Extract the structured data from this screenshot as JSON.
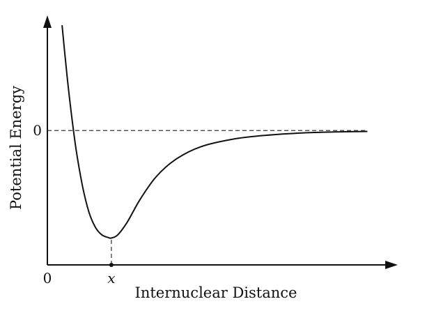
{
  "chart_data": {
    "type": "line",
    "title": "",
    "xlabel": "Internuclear Distance",
    "ylabel": "Potential Energy",
    "x_tick_labels": [
      {
        "value": 0,
        "label": "0"
      },
      {
        "value": 1,
        "label": "x"
      }
    ],
    "y_tick_labels": [
      {
        "value": 0,
        "label": "0"
      }
    ],
    "reference_lines": [
      {
        "orientation": "horizontal",
        "value": 0,
        "style": "dashed"
      },
      {
        "orientation": "vertical",
        "value": 1,
        "style": "dashed",
        "from": "axis",
        "to": "curve-minimum"
      }
    ],
    "xlim": [
      0,
      5.3
    ],
    "ylim": [
      -1.25,
      1.0
    ],
    "grid": false,
    "legend": "none",
    "series": [
      {
        "values_x": [
          0.23,
          0.3,
          0.37,
          0.45,
          0.55,
          0.65,
          0.75,
          0.85,
          0.95,
          1.0,
          1.1,
          1.25,
          1.45,
          1.7,
          2.0,
          2.4,
          2.9,
          3.4,
          4.0,
          4.6,
          5.0
        ],
        "values_y": [
          0.98,
          0.55,
          0.18,
          -0.18,
          -0.52,
          -0.76,
          -0.9,
          -0.97,
          -0.995,
          -1.0,
          -0.97,
          -0.85,
          -0.64,
          -0.43,
          -0.27,
          -0.15,
          -0.08,
          -0.045,
          -0.022,
          -0.012,
          -0.008
        ]
      }
    ],
    "colors": {
      "axis": "#111111",
      "curve": "#111111",
      "dashes": "#333333",
      "background": "#ffffff"
    }
  }
}
